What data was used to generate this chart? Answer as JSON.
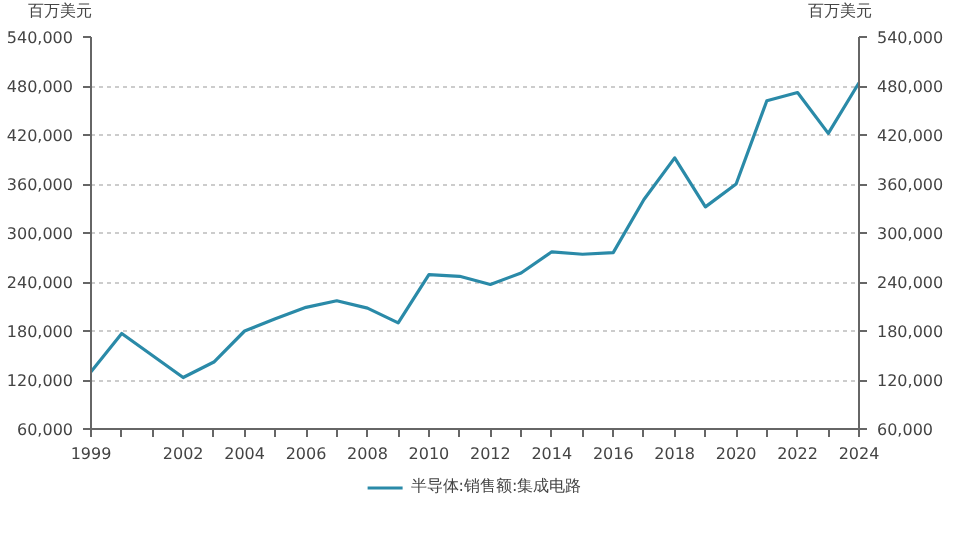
{
  "chart_data": {
    "type": "line",
    "ylabel": "百万美元",
    "y2label": "百万美元",
    "x": [
      1999,
      2000,
      2001,
      2002,
      2003,
      2004,
      2005,
      2006,
      2007,
      2008,
      2009,
      2010,
      2011,
      2012,
      2013,
      2014,
      2015,
      2016,
      2017,
      2018,
      2019,
      2020,
      2021,
      2022,
      2023,
      2024
    ],
    "series": [
      {
        "name": "半导体:销售额:集成电路",
        "color": "#2a8aa8",
        "values": [
          130000,
          177000,
          150000,
          123000,
          142000,
          180000,
          195000,
          209000,
          217000,
          208000,
          190000,
          249000,
          247000,
          237000,
          251000,
          277000,
          274000,
          276000,
          341000,
          392000,
          332000,
          360000,
          462000,
          472000,
          422000,
          484000
        ]
      }
    ],
    "xlim": [
      1999,
      2024
    ],
    "xticks": [
      1999,
      {
        "value": 2000,
        "label": null
      },
      {
        "value": 2001,
        "label": null
      },
      2002,
      {
        "value": 2003,
        "label": null
      },
      2004,
      {
        "value": 2005,
        "label": null
      },
      2006,
      {
        "value": 2007,
        "label": null
      },
      2008,
      {
        "value": 2009,
        "label": null
      },
      2010,
      {
        "value": 2011,
        "label": null
      },
      2012,
      {
        "value": 2013,
        "label": null
      },
      2014,
      {
        "value": 2015,
        "label": null
      },
      2016,
      {
        "value": 2017,
        "label": null
      },
      2018,
      {
        "value": 2019,
        "label": null
      },
      2020,
      {
        "value": 2021,
        "label": null
      },
      2022,
      {
        "value": 2023,
        "label": null
      },
      2024
    ],
    "ylim": [
      60000,
      540000
    ],
    "yticks": [
      {
        "value": 60000,
        "label": "60,000"
      },
      {
        "value": 120000,
        "label": "120,000"
      },
      {
        "value": 180000,
        "label": "180,000"
      },
      {
        "value": 240000,
        "label": "240,000"
      },
      {
        "value": 300000,
        "label": "300,000"
      },
      {
        "value": 360000,
        "label": "360,000"
      },
      {
        "value": 420000,
        "label": "420,000"
      },
      {
        "value": 480000,
        "label": "480,000"
      },
      {
        "value": 540000,
        "label": "540,000"
      }
    ],
    "y2lim": [
      60000,
      540000
    ],
    "y2ticks": [
      {
        "value": 60000,
        "label": "60,000"
      },
      {
        "value": 120000,
        "label": "120,000"
      },
      {
        "value": 180000,
        "label": "180,000"
      },
      {
        "value": 240000,
        "label": "240,000"
      },
      {
        "value": 300000,
        "label": "300,000"
      },
      {
        "value": 360000,
        "label": "360,000"
      },
      {
        "value": 420000,
        "label": "420,000"
      },
      {
        "value": 480000,
        "label": "480,000"
      },
      {
        "value": 540000,
        "label": "540,000"
      }
    ],
    "grid": "y",
    "legend": "bottom",
    "marker": "none",
    "line_style": "solid"
  }
}
